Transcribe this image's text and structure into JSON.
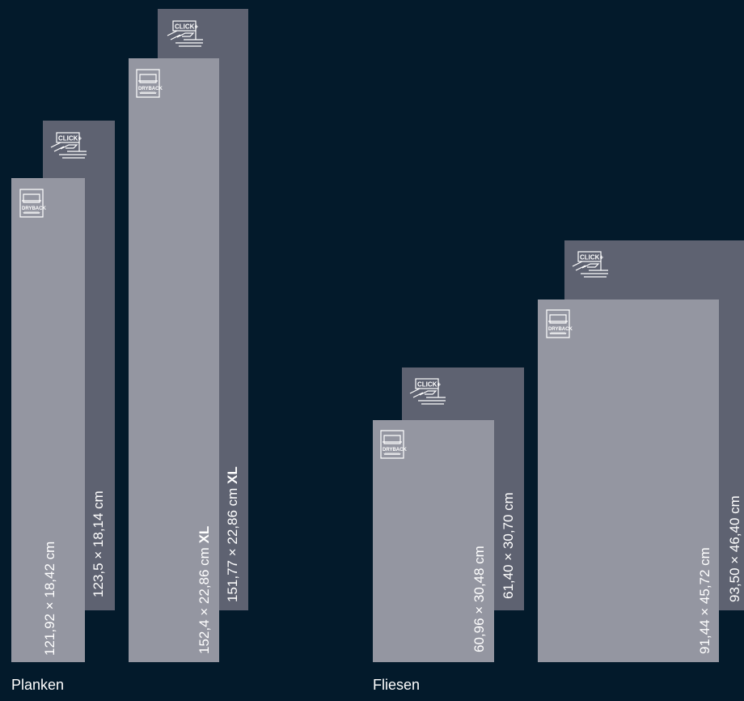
{
  "groups": {
    "planks": {
      "label": "Planken",
      "items": [
        {
          "size": "121,92 × 18,42 cm",
          "install": "DRYBACK",
          "xl": ""
        },
        {
          "size": "123,5 × 18,14 cm",
          "install": "CLICK+",
          "xl": ""
        },
        {
          "size": "152,4 × 22,86 cm",
          "install": "DRYBACK",
          "xl": "XL"
        },
        {
          "size": "151,77 × 22,86 cm",
          "install": "CLICK+",
          "xl": "XL"
        }
      ]
    },
    "tiles": {
      "label": "Fliesen",
      "items": [
        {
          "size": "60,96 × 30,48 cm",
          "install": "DRYBACK"
        },
        {
          "size": "61,40 × 30,70 cm",
          "install": "CLICK+"
        },
        {
          "size": "91,44 × 45,72 cm",
          "install": "DRYBACK"
        },
        {
          "size": "93,50 × 46,40 cm",
          "install": "CLICK+"
        }
      ]
    }
  },
  "icons": {
    "click_text": "CLICK+",
    "dryback_text": "DRYBACK"
  },
  "colors": {
    "background": "#031a2b",
    "click_tile": "#5e6271",
    "dryback_tile": "#9496a1",
    "text": "#ffffff"
  }
}
